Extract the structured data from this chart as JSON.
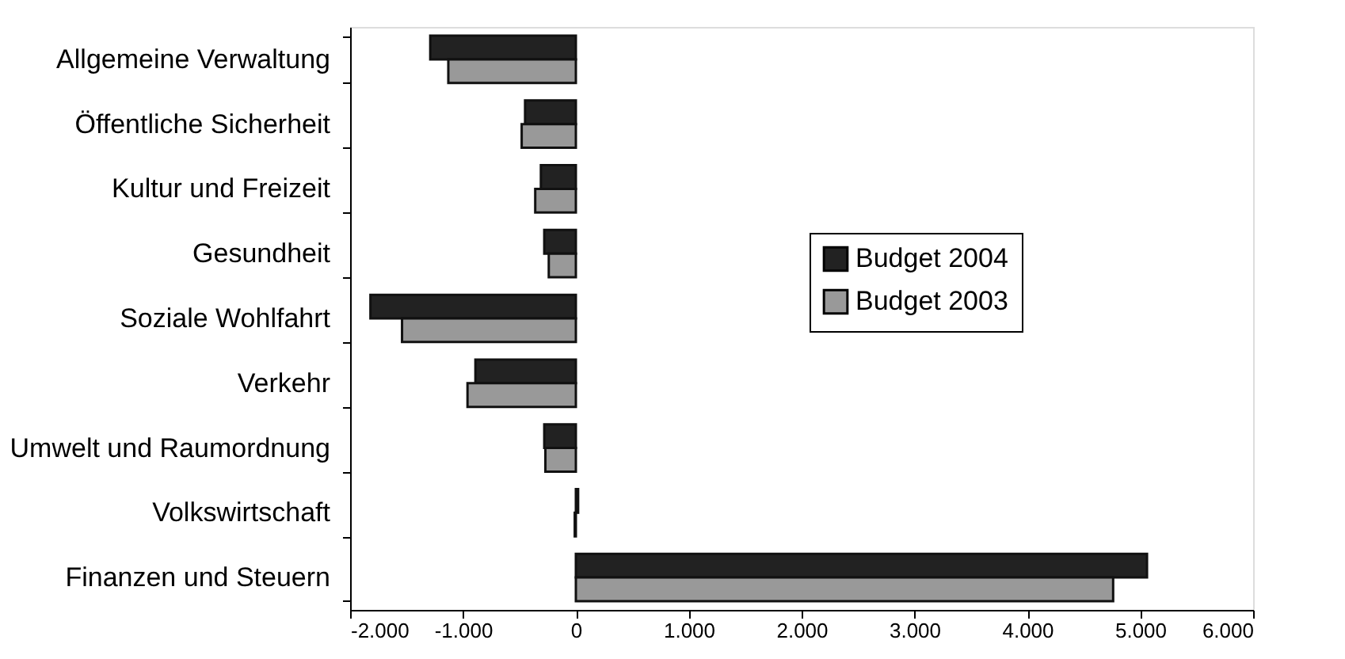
{
  "chart_data": {
    "type": "bar",
    "orientation": "horizontal",
    "categories": [
      "Allgemeine Verwaltung",
      "Öffentliche Sicherheit",
      "Kultur und Freizeit",
      "Gesundheit",
      "Soziale Wohlfahrt",
      "Verkehr",
      "Umwelt und Raumordnung",
      "Volkswirtschaft",
      "Finanzen und Steuern"
    ],
    "series": [
      {
        "name": "Budget 2004",
        "color": "#222222",
        "values": [
          -1290,
          -450,
          -310,
          -280,
          -1820,
          -890,
          -280,
          20,
          5060
        ]
      },
      {
        "name": "Budget 2003",
        "color": "#999999",
        "values": [
          -1130,
          -480,
          -360,
          -240,
          -1540,
          -960,
          -270,
          -10,
          4760
        ]
      }
    ],
    "xlim": [
      -2000,
      6000
    ],
    "xticks": [
      {
        "value": -2000,
        "label": "-2.000"
      },
      {
        "value": -1000,
        "label": "-1.000"
      },
      0,
      {
        "value": 1000,
        "label": "1.000"
      },
      {
        "value": 2000,
        "label": "2.000"
      },
      {
        "value": 3000,
        "label": "3.000"
      },
      {
        "value": 4000,
        "label": "4.000"
      },
      {
        "value": 5000,
        "label": "5.000"
      },
      {
        "value": 6000,
        "label": "6.000"
      }
    ],
    "grid": false,
    "legend": "right"
  }
}
